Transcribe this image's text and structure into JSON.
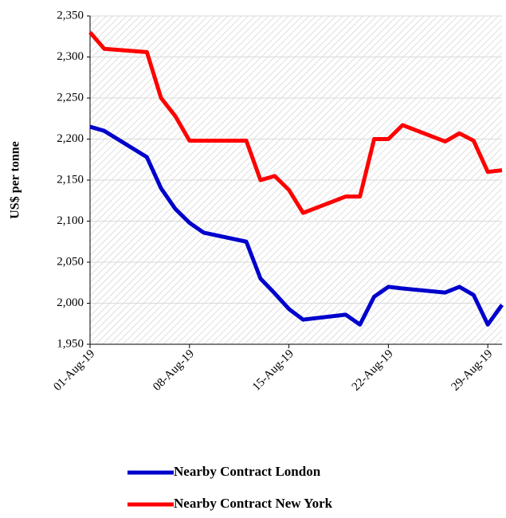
{
  "chart_data": {
    "type": "line",
    "y_label": "US$ per tonne",
    "x": [
      "2019-08-01",
      "2019-08-02",
      "2019-08-05",
      "2019-08-06",
      "2019-08-07",
      "2019-08-08",
      "2019-08-09",
      "2019-08-12",
      "2019-08-13",
      "2019-08-14",
      "2019-08-15",
      "2019-08-16",
      "2019-08-19",
      "2019-08-20",
      "2019-08-21",
      "2019-08-22",
      "2019-08-23",
      "2019-08-26",
      "2019-08-27",
      "2019-08-28",
      "2019-08-29",
      "2019-08-30"
    ],
    "series": [
      {
        "name": "Nearby Contract London",
        "color": "#0000cc",
        "values": [
          2215,
          2210,
          2178,
          2140,
          2115,
          2098,
          2086,
          2075,
          2030,
          2012,
          1993,
          1980,
          1986,
          1974,
          2008,
          2020,
          2018,
          2013,
          2020,
          2010,
          1974,
          1998
        ]
      },
      {
        "name": "Nearby Contract New York",
        "color": "#ff0000",
        "values": [
          2330,
          2310,
          2306,
          2250,
          2228,
          2198,
          2198,
          2198,
          2150,
          2155,
          2138,
          2110,
          2130,
          2130,
          2200,
          2200,
          2217,
          2197,
          2207,
          2198,
          2160,
          2162
        ]
      }
    ],
    "xlim": [
      "2019-08-01",
      "2019-08-30"
    ],
    "xticks": [
      {
        "value": "2019-08-01",
        "label": "01-Aug-19"
      },
      {
        "value": "2019-08-08",
        "label": "08-Aug-19"
      },
      {
        "value": "2019-08-15",
        "label": "15-Aug-19"
      },
      {
        "value": "2019-08-22",
        "label": "22-Aug-19"
      },
      {
        "value": "2019-08-29",
        "label": "29-Aug-19"
      }
    ],
    "ylim": [
      1950,
      2350
    ],
    "yticks": [
      {
        "value": 1950,
        "label": "1,950"
      },
      {
        "value": 2000,
        "label": "2,000"
      },
      {
        "value": 2050,
        "label": "2,050"
      },
      {
        "value": 2100,
        "label": "2,100"
      },
      {
        "value": 2150,
        "label": "2,150"
      },
      {
        "value": 2200,
        "label": "2,200"
      },
      {
        "value": 2250,
        "label": "2,250"
      },
      {
        "value": 2300,
        "label": "2,300"
      },
      {
        "value": 2350,
        "label": "2,350"
      }
    ],
    "grid": true
  }
}
